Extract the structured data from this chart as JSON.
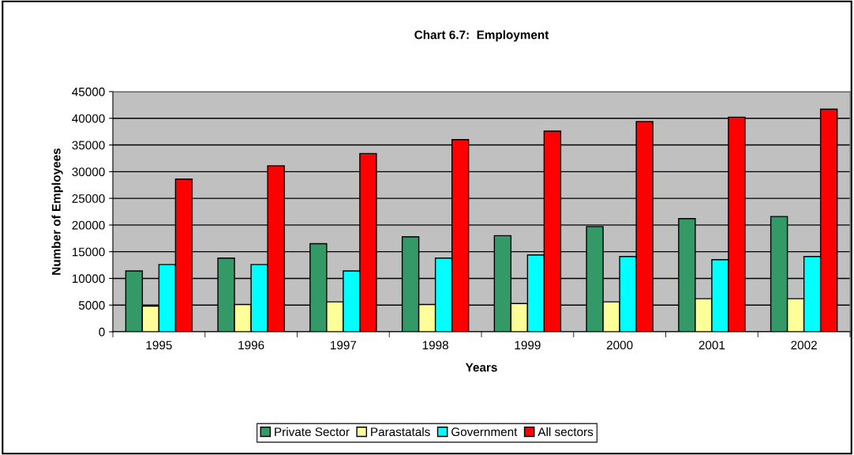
{
  "chart_data": {
    "type": "bar",
    "title": "Chart 6.7:  Employment",
    "xlabel": "Years",
    "ylabel": "Number of Employees",
    "categories": [
      "1995",
      "1996",
      "1997",
      "1998",
      "1999",
      "2000",
      "2001",
      "2002"
    ],
    "series": [
      {
        "name": "Private Sector",
        "color": "#339966",
        "values": [
          11400,
          13800,
          16500,
          17800,
          18000,
          19700,
          21200,
          21600
        ]
      },
      {
        "name": "Parastatals",
        "color": "#ffff99",
        "values": [
          4800,
          5100,
          5600,
          5100,
          5300,
          5600,
          6200,
          6200
        ]
      },
      {
        "name": "Government",
        "color": "#00ffff",
        "values": [
          12600,
          12600,
          11400,
          13800,
          14400,
          14100,
          13500,
          14100
        ]
      },
      {
        "name": "All sectors",
        "color": "#ff0000",
        "values": [
          28600,
          31100,
          33400,
          36000,
          37600,
          39400,
          40200,
          41700
        ]
      }
    ],
    "ylim": [
      0,
      45000
    ],
    "yticks": [
      0,
      5000,
      10000,
      15000,
      20000,
      25000,
      30000,
      35000,
      40000,
      45000
    ],
    "grid": "y",
    "legend": "bottom"
  }
}
